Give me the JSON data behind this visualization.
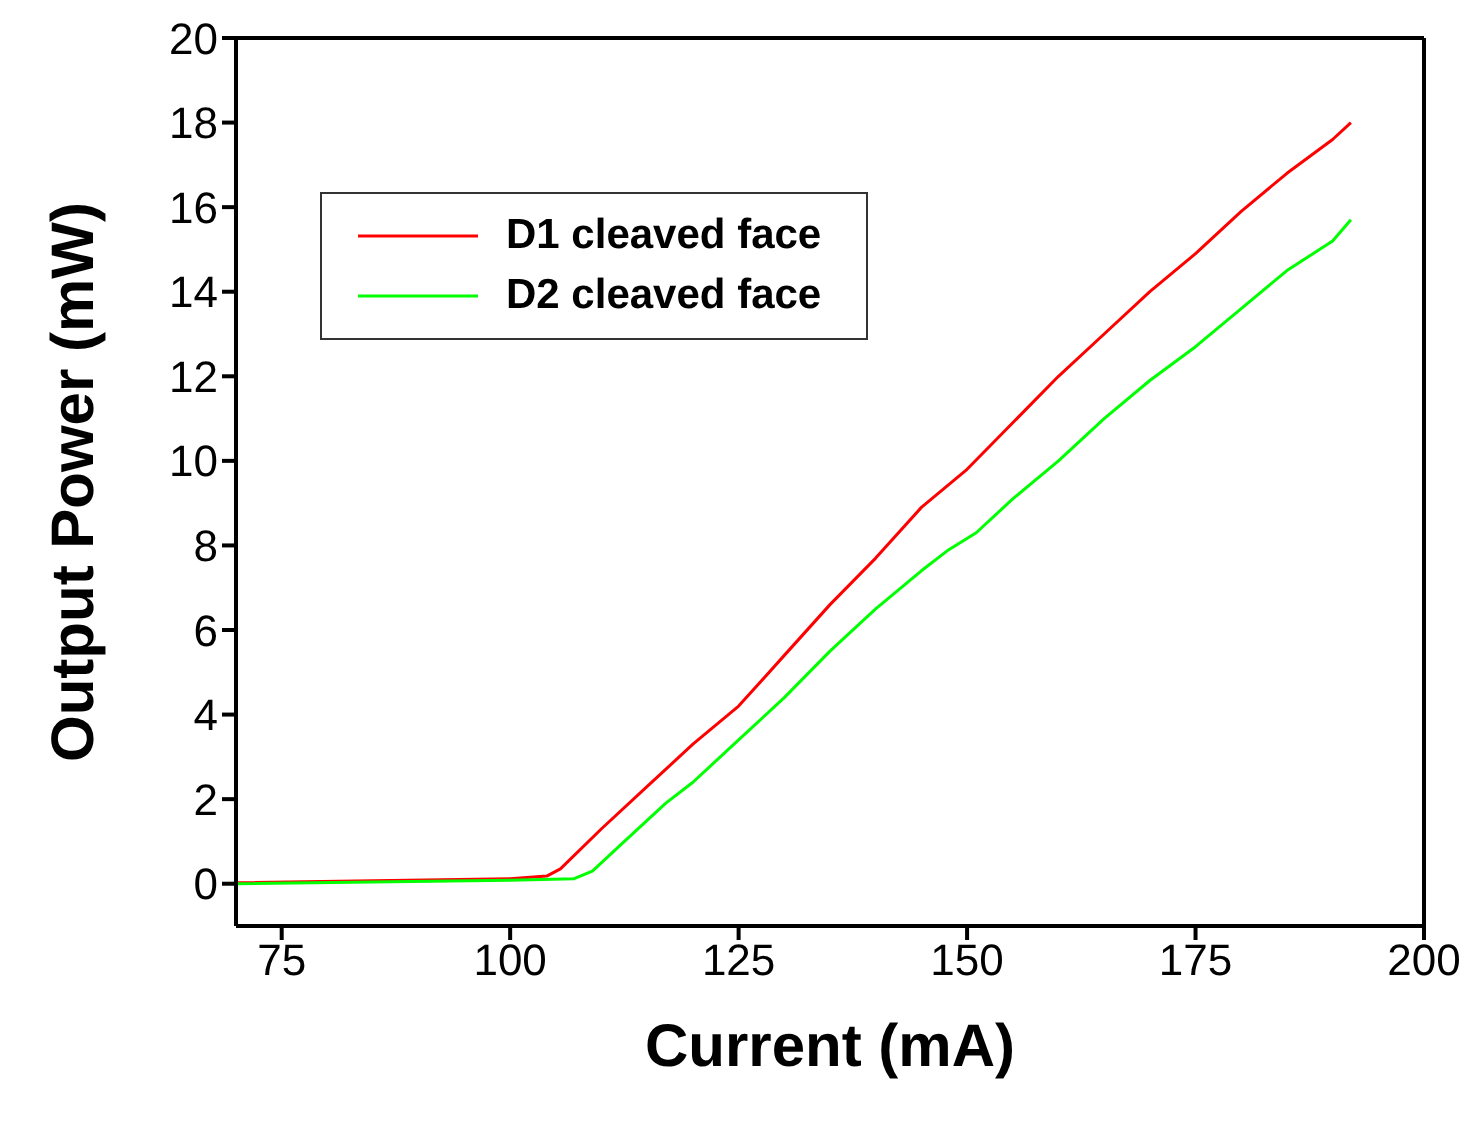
{
  "chart_data": {
    "type": "line",
    "xlabel": "Current (mA)",
    "ylabel": "Output Power (mW)",
    "xlim": [
      70,
      200
    ],
    "xticks": [
      75,
      100,
      125,
      150,
      175,
      200
    ],
    "ylim": [
      -1,
      20
    ],
    "yticks": [
      0,
      2,
      4,
      6,
      8,
      10,
      12,
      14,
      16,
      18,
      20
    ],
    "grid": false,
    "legend": "top left",
    "marker": "none",
    "line_style": "solid",
    "series": [
      {
        "name": "D1 cleaved face",
        "color": "#ff0000",
        "x": [
          70,
          100,
          104,
          105.5,
          110,
          115,
          120,
          125,
          130,
          135,
          140,
          145,
          150,
          155,
          160,
          165,
          170,
          175,
          180,
          185,
          190,
          192
        ],
        "values": [
          0.02,
          0.12,
          0.18,
          0.35,
          1.3,
          2.3,
          3.3,
          4.2,
          5.4,
          6.6,
          7.7,
          8.9,
          9.8,
          10.9,
          12.0,
          13.0,
          14.0,
          14.9,
          15.9,
          16.8,
          17.6,
          18.0
        ]
      },
      {
        "name": "D2 cleaved face",
        "color": "#00ff00",
        "x": [
          70,
          100,
          107,
          109,
          112,
          116,
          117,
          120,
          125,
          130,
          135,
          140,
          145,
          148,
          151,
          155,
          160,
          165,
          170,
          175,
          180,
          185,
          190,
          192
        ],
        "values": [
          0,
          0.08,
          0.12,
          0.3,
          0.9,
          1.7,
          1.9,
          2.4,
          3.4,
          4.4,
          5.5,
          6.5,
          7.4,
          7.9,
          8.3,
          9.1,
          10.0,
          11.0,
          11.9,
          12.7,
          13.6,
          14.5,
          15.2,
          15.7
        ]
      }
    ]
  }
}
